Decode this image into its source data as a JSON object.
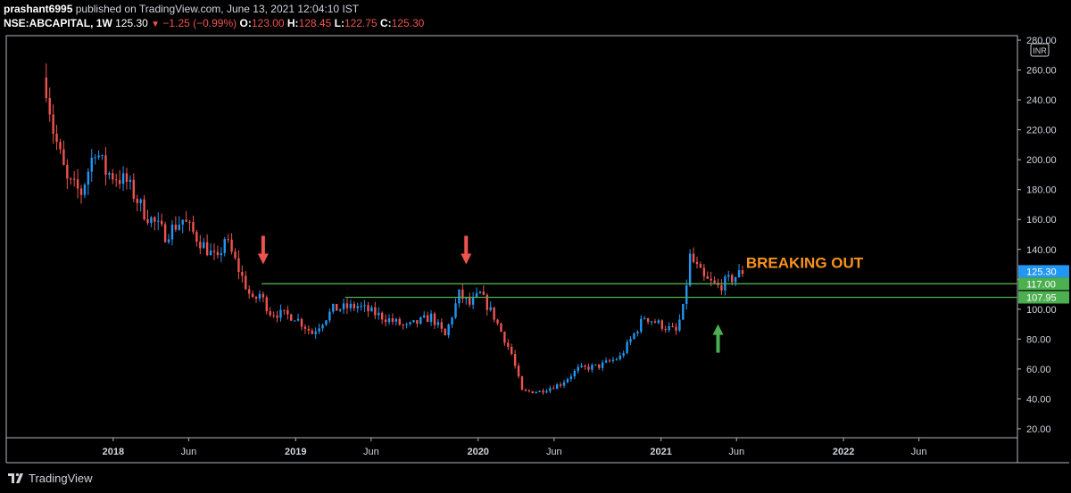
{
  "header": {
    "author": "prashant6995",
    "published_text": "published on TradingView.com, June 13, 2021 12:04:10 IST",
    "symbol": "NSE:ABCAPITAL, 1W",
    "last_price": "125.30",
    "change_text": "−1.25 (−0.99%)",
    "o_label": "O:",
    "o_value": "123.00",
    "h_label": "H:",
    "h_value": "128.45",
    "l_label": "L:",
    "l_value": "122.75",
    "c_label": "C:",
    "c_value": "125.30"
  },
  "footer": {
    "brand": "TradingView"
  },
  "colors": {
    "up": "#2196f3",
    "down": "#ef5350",
    "support": "#4caf50",
    "annotation": "#f7931e",
    "background": "#000000"
  },
  "chart_data": {
    "type": "candlestick",
    "currency_label": "INR",
    "y_ticks": [
      20,
      40,
      60,
      80,
      100,
      120,
      140,
      160,
      180,
      200,
      220,
      240,
      260,
      280
    ],
    "y_tick_labels": [
      "20.00",
      "40.00",
      "60.00",
      "80.00",
      "100.00",
      "",
      "140.00",
      "160.00",
      "180.00",
      "200.00",
      "220.00",
      "240.00",
      "260.00",
      "280.00"
    ],
    "ylim": [
      14,
      283
    ],
    "x_range": [
      "2017-06-01",
      "2022-12-15"
    ],
    "x_ticks": [
      {
        "date": "2018-01-01",
        "label": "2018",
        "bold": true
      },
      {
        "date": "2018-06-01",
        "label": "Jun",
        "bold": false
      },
      {
        "date": "2019-01-01",
        "label": "2019",
        "bold": true
      },
      {
        "date": "2019-06-01",
        "label": "Jun",
        "bold": false
      },
      {
        "date": "2020-01-01",
        "label": "2020",
        "bold": true
      },
      {
        "date": "2020-06-01",
        "label": "Jun",
        "bold": false
      },
      {
        "date": "2021-01-01",
        "label": "2021",
        "bold": true
      },
      {
        "date": "2021-06-01",
        "label": "Jun",
        "bold": false
      },
      {
        "date": "2022-01-01",
        "label": "2022",
        "bold": true
      },
      {
        "date": "2022-06-01",
        "label": "Jun",
        "bold": false
      }
    ],
    "price_badges": [
      {
        "value": 125.3,
        "label": "125.30",
        "color": "#2196f3"
      },
      {
        "value": 117.0,
        "label": "117.00",
        "color": "#4caf50"
      },
      {
        "value": 107.95,
        "label": "107.95",
        "color": "#4caf50"
      }
    ],
    "horizontal_lines": [
      {
        "value": 117.0,
        "start": "2018-10-25",
        "color": "#4caf50"
      },
      {
        "value": 107.95,
        "start": "2019-04-10",
        "color": "#4caf50"
      }
    ],
    "arrows": [
      {
        "date": "2018-10-28",
        "value": 130,
        "direction": "down",
        "color": "#ef5350"
      },
      {
        "date": "2019-12-08",
        "value": 130,
        "direction": "down",
        "color": "#ef5350"
      },
      {
        "date": "2021-04-25",
        "value": 90,
        "direction": "up",
        "color": "#4caf50"
      }
    ],
    "annotation": {
      "text": "BREAKING OUT",
      "date": "2021-06-20",
      "value": 130
    },
    "anchors": [
      [
        "2017-08-20",
        250
      ],
      [
        "2017-09-03",
        220
      ],
      [
        "2017-10-01",
        185
      ],
      [
        "2017-10-29",
        178
      ],
      [
        "2017-11-26",
        208
      ],
      [
        "2017-12-17",
        192
      ],
      [
        "2018-01-28",
        185
      ],
      [
        "2018-03-04",
        165
      ],
      [
        "2018-04-15",
        150
      ],
      [
        "2018-05-20",
        160
      ],
      [
        "2018-06-17",
        148
      ],
      [
        "2018-07-29",
        132
      ],
      [
        "2018-08-12",
        148
      ],
      [
        "2018-09-02",
        132
      ],
      [
        "2018-10-07",
        105
      ],
      [
        "2018-10-21",
        110
      ],
      [
        "2018-11-11",
        98
      ],
      [
        "2018-12-30",
        95
      ],
      [
        "2019-02-03",
        84
      ],
      [
        "2019-03-17",
        100
      ],
      [
        "2019-05-05",
        102
      ],
      [
        "2019-06-23",
        95
      ],
      [
        "2019-08-11",
        88
      ],
      [
        "2019-09-29",
        95
      ],
      [
        "2019-10-27",
        82
      ],
      [
        "2019-11-24",
        110
      ],
      [
        "2019-12-15",
        103
      ],
      [
        "2020-01-05",
        110
      ],
      [
        "2020-02-02",
        95
      ],
      [
        "2020-03-08",
        70
      ],
      [
        "2020-03-29",
        45
      ],
      [
        "2020-05-03",
        45
      ],
      [
        "2020-06-14",
        50
      ],
      [
        "2020-07-19",
        60
      ],
      [
        "2020-08-30",
        62
      ],
      [
        "2020-10-11",
        68
      ],
      [
        "2020-11-29",
        95
      ],
      [
        "2021-01-10",
        88
      ],
      [
        "2021-01-31",
        85
      ],
      [
        "2021-02-14",
        100
      ],
      [
        "2021-02-28",
        135
      ],
      [
        "2021-03-28",
        120
      ],
      [
        "2021-04-25",
        115
      ],
      [
        "2021-05-30",
        122
      ],
      [
        "2021-06-13",
        125.3
      ]
    ]
  }
}
